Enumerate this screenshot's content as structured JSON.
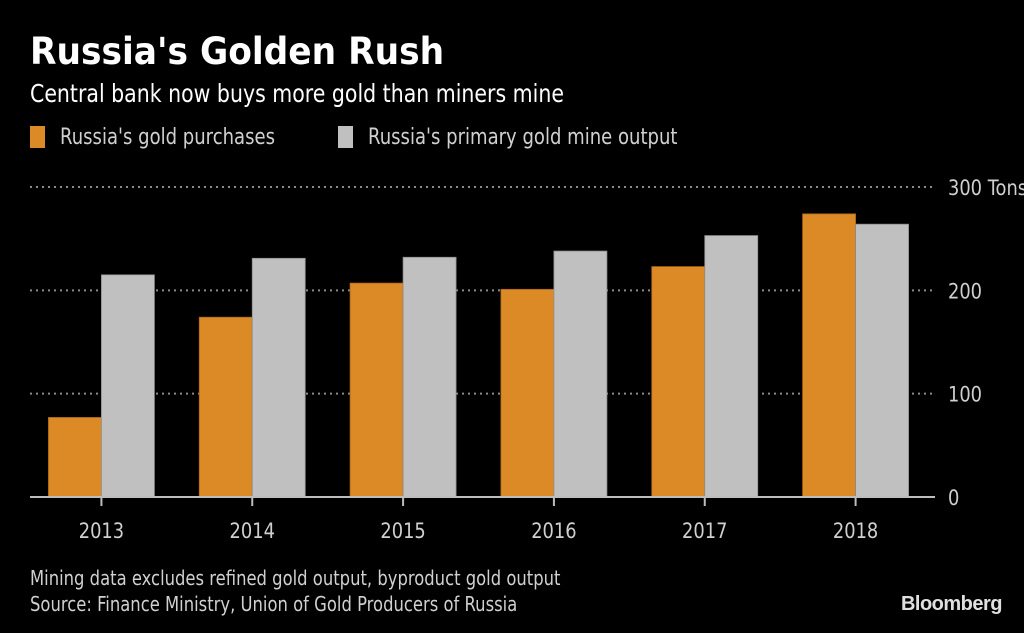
{
  "chart_data": {
    "type": "bar",
    "title": "Russia's Golden Rush",
    "subtitle": "Central bank now buys more gold than miners mine",
    "categories": [
      "2013",
      "2014",
      "2015",
      "2016",
      "2017",
      "2018"
    ],
    "series": [
      {
        "name": "Russia's gold purchases",
        "color": "#dc8a26",
        "values": [
          77,
          174,
          207,
          201,
          223,
          274
        ]
      },
      {
        "name": "Russia's primary gold mine output",
        "color": "#c0c0c0",
        "values": [
          215,
          231,
          232,
          238,
          253,
          264
        ]
      }
    ],
    "xlabel": "",
    "ylabel": "Tons",
    "ylim": [
      0,
      300
    ],
    "yticks": [
      0,
      100,
      200,
      300
    ],
    "ytick_labels": [
      "0",
      "100",
      "200",
      "300 Tons"
    ],
    "grid": true,
    "legend": "top-left",
    "yaxis_side": "right"
  },
  "footnotes": [
    "Mining data excludes refined gold output, byproduct gold output",
    "Source: Finance Ministry, Union of Gold Producers of Russia"
  ],
  "brand": "Bloomberg"
}
